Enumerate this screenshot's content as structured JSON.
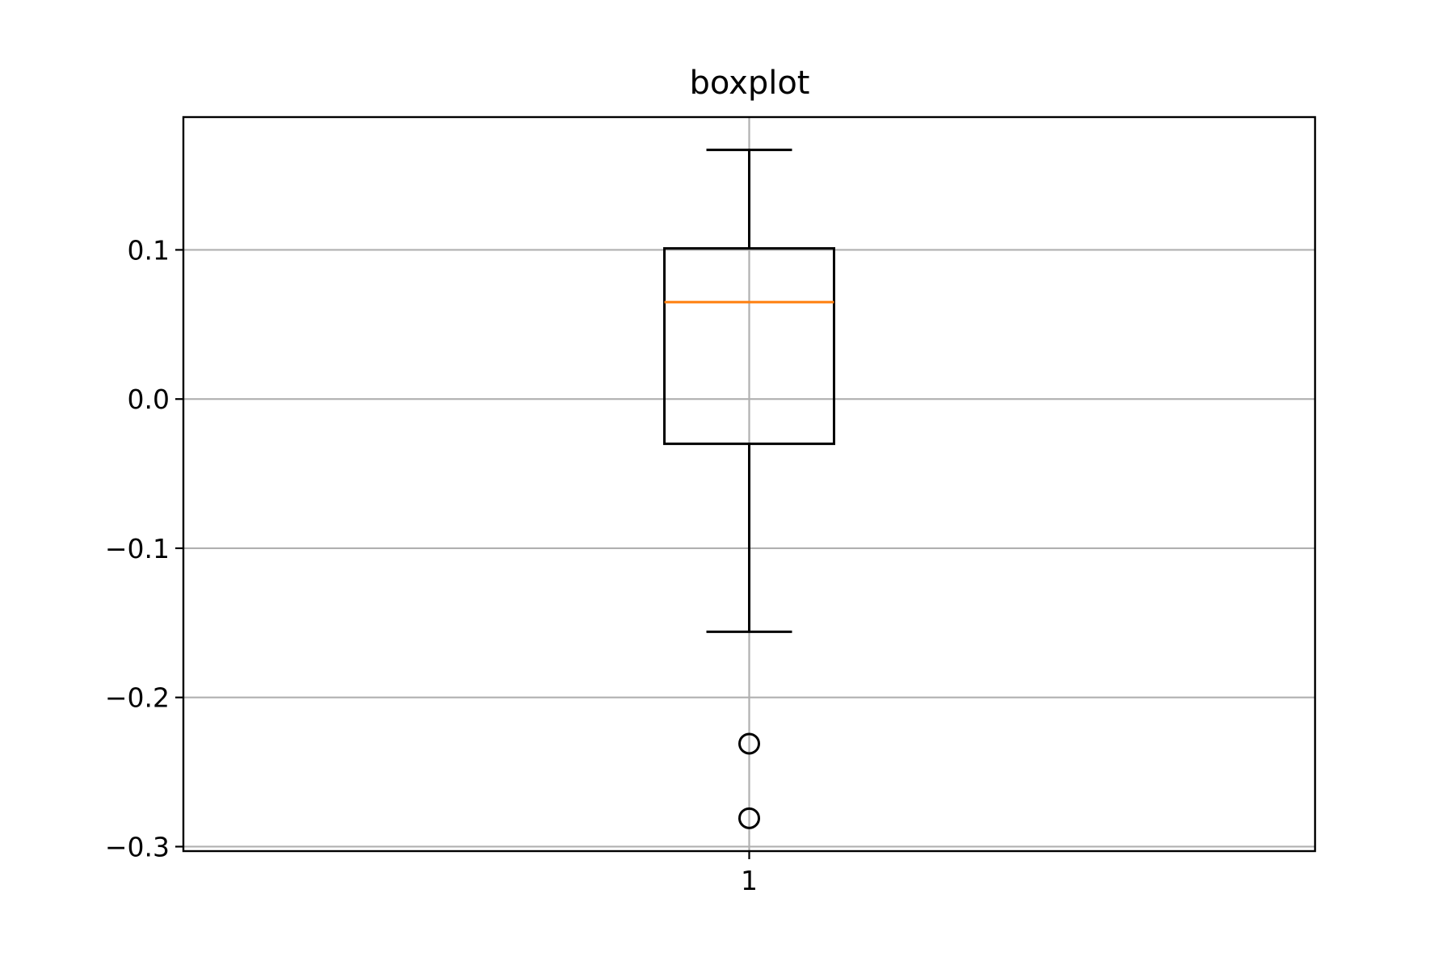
{
  "chart_data": {
    "type": "boxplot",
    "title": "boxplot",
    "xlabel": "",
    "ylabel": "",
    "categories": [
      "1"
    ],
    "boxes": [
      {
        "category": "1",
        "whisker_low": -0.156,
        "q1": -0.03,
        "median": 0.065,
        "q3": 0.101,
        "whisker_high": 0.167,
        "outliers": [
          -0.231,
          -0.281
        ]
      }
    ],
    "ylim": [
      -0.303,
      0.189
    ],
    "yticks": [
      0.1,
      0.0,
      -0.1,
      -0.2,
      -0.3
    ],
    "ytick_labels": [
      "0.1",
      "0.0",
      "−0.1",
      "−0.2",
      "−0.3"
    ],
    "grid": true,
    "colors": {
      "box": "#000000",
      "median": "#ff7f0e",
      "grid": "#b0b0b0",
      "outlier": "#000000"
    }
  }
}
